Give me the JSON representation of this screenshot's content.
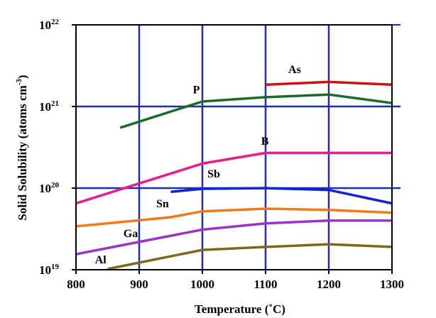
{
  "chart_data": {
    "type": "line",
    "title": "",
    "xlabel": "Temperature (˚C)",
    "ylabel_main": "Solid Solubility (atoms cm",
    "ylabel_exp": "-3",
    "ylabel_close": ")",
    "xlim": [
      800,
      1300
    ],
    "ylim": [
      1e+19,
      1e+22
    ],
    "yscale": "log",
    "grid": true,
    "x_ticks": [
      800,
      900,
      1000,
      1100,
      1200,
      1300
    ],
    "x_tick_labels": [
      "800",
      "900",
      "1000",
      "1100",
      "1200",
      "1300"
    ],
    "y_ticks": [
      {
        "value": 1e+19,
        "base": "10",
        "exp": "19"
      },
      {
        "value": 1e+20,
        "base": "10",
        "exp": "20"
      },
      {
        "value": 1e+21,
        "base": "10",
        "exp": "21"
      },
      {
        "value": 1e+22,
        "base": "10",
        "exp": "22"
      }
    ],
    "colors": {
      "grid": "#1f2fa8",
      "axis": "#000000"
    },
    "series": [
      {
        "name": "As",
        "color": "#cc1111",
        "x": [
          1100,
          1200,
          1300
        ],
        "y": [
          1.85e+21,
          2e+21,
          1.85e+21
        ],
        "label_at": [
          1136,
          2.55e+21
        ]
      },
      {
        "name": "P",
        "color": "#1a6b2a",
        "x": [
          870,
          1000,
          1100,
          1200,
          1300
        ],
        "y": [
          5.5e+20,
          1.15e+21,
          1.3e+21,
          1.4e+21,
          1.1e+21
        ],
        "label_at": [
          985,
          1.45e+21
        ]
      },
      {
        "name": "B",
        "color": "#e81c8c",
        "x": [
          800,
          1000,
          1100,
          1200,
          1300
        ],
        "y": [
          6.5e+19,
          2e+20,
          2.7e+20,
          2.7e+20,
          2.7e+20
        ],
        "label_at": [
          1093,
          3.4e+20
        ]
      },
      {
        "name": "Sb",
        "color": "#1024d0",
        "x": [
          950,
          1000,
          1100,
          1200,
          1300
        ],
        "y": [
          9e+19,
          9.8e+19,
          1e+20,
          9.5e+19,
          6.5e+19
        ],
        "label_at": [
          1008,
          1.35e+20
        ]
      },
      {
        "name": "Sn",
        "color": "#f07a1a",
        "x": [
          800,
          950,
          1000,
          1100,
          1200,
          1300
        ],
        "y": [
          3.4e+19,
          4.4e+19,
          5.2e+19,
          5.6e+19,
          5.4e+19,
          5e+19
        ],
        "label_at": [
          927,
          5.8e+19
        ]
      },
      {
        "name": "Ga",
        "color": "#9a33cc",
        "x": [
          800,
          1000,
          1100,
          1200,
          1300
        ],
        "y": [
          1.55e+19,
          3.1e+19,
          3.7e+19,
          4e+19,
          4e+19
        ],
        "label_at": [
          875,
          2.5e+19
        ]
      },
      {
        "name": "Al",
        "color": "#7a6a18",
        "x": [
          850,
          1000,
          1100,
          1200,
          1300
        ],
        "y": [
          1.02e+19,
          1.75e+19,
          1.9e+19,
          2.05e+19,
          1.9e+19
        ],
        "label_at": [
          830,
          1.2e+19
        ]
      }
    ]
  }
}
